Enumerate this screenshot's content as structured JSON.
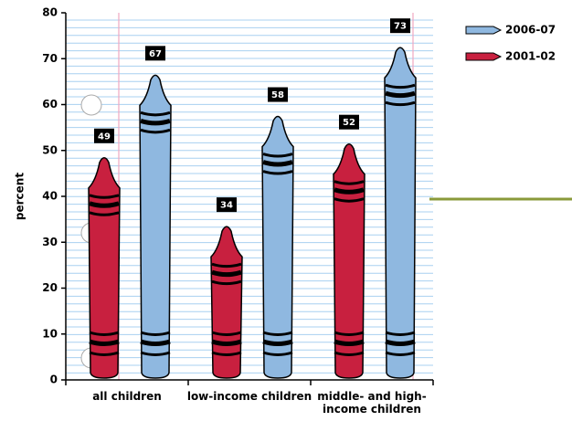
{
  "chart_data": {
    "type": "bar",
    "ylabel": "percent",
    "categories": [
      "all children",
      "low-income children",
      "middle- and high-income children"
    ],
    "series": [
      {
        "name": "2001-02",
        "color": "#c8203f",
        "values": [
          49,
          34,
          52
        ]
      },
      {
        "name": "2006-07",
        "color": "#8fb8e0",
        "values": [
          67,
          58,
          73
        ]
      }
    ],
    "ylim": [
      0,
      80
    ],
    "yticks": [
      0,
      10,
      20,
      30,
      40,
      50,
      60,
      70,
      80
    ],
    "legend": "upper right"
  }
}
